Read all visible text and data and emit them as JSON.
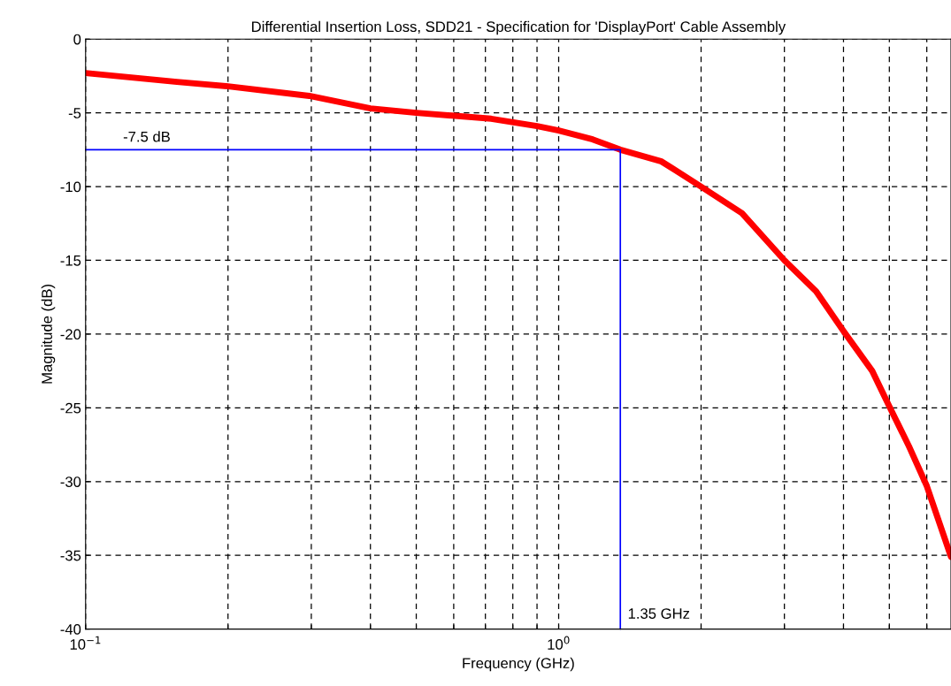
{
  "chart_data": {
    "type": "line",
    "title": "Differential Insertion Loss, SDD21 - Specification for 'DisplayPort' Cable Assembly",
    "xlabel": "Frequency (GHz)",
    "ylabel": "Magnitude (dB)",
    "log": "x",
    "grid": true,
    "marker": "none",
    "line_style": "solid",
    "xlim": [
      0.1,
      6.75
    ],
    "ylim": [
      -40,
      0
    ],
    "xticks": [
      {
        "value": 0.1,
        "label": "10$^{−1}$"
      },
      {
        "value": 0.2,
        "label": null
      },
      {
        "value": 0.3,
        "label": null
      },
      {
        "value": 0.4,
        "label": null
      },
      {
        "value": 0.5,
        "label": null
      },
      {
        "value": 0.6,
        "label": null
      },
      {
        "value": 0.7,
        "label": null
      },
      {
        "value": 0.8,
        "label": null
      },
      {
        "value": 0.9,
        "label": null
      },
      {
        "value": 1,
        "label": "10$^{0}$"
      },
      {
        "value": 2,
        "label": null
      },
      {
        "value": 3,
        "label": null
      },
      {
        "value": 4,
        "label": null
      },
      {
        "value": 5,
        "label": null
      },
      {
        "value": 6,
        "label": null
      }
    ],
    "yticks": [
      -40,
      -35,
      -30,
      -25,
      -20,
      -15,
      -10,
      -5,
      0
    ],
    "series": [
      {
        "color": "#ff0000",
        "x": [
          0.1,
          0.156,
          0.2,
          0.297,
          0.4,
          0.5,
          0.72,
          0.9,
          1,
          1.18,
          1.35,
          1.65,
          2,
          2.44,
          3,
          3.5,
          4,
          4.6,
          5,
          5.5,
          6,
          6.75
        ],
        "values": [
          -2.3,
          -2.9,
          -3.2,
          -3.85,
          -4.7,
          -5.0,
          -5.4,
          -5.9,
          -6.2,
          -6.8,
          -7.5,
          -8.3,
          -10.0,
          -11.8,
          -15.0,
          -17.1,
          -19.8,
          -22.5,
          -24.9,
          -27.6,
          -30.3,
          -35.1
        ]
      },
      {
        "color": "#0000ff",
        "x": [
          0.1,
          1.35,
          1.35
        ],
        "values": [
          -7.5,
          -7.5,
          -40
        ]
      }
    ],
    "annotations": [
      {
        "text": "-7.5 dB",
        "x": 0.12,
        "y": -7.5
      },
      {
        "text": "1.35 GHz",
        "x": 1.35,
        "y": -40
      }
    ]
  }
}
